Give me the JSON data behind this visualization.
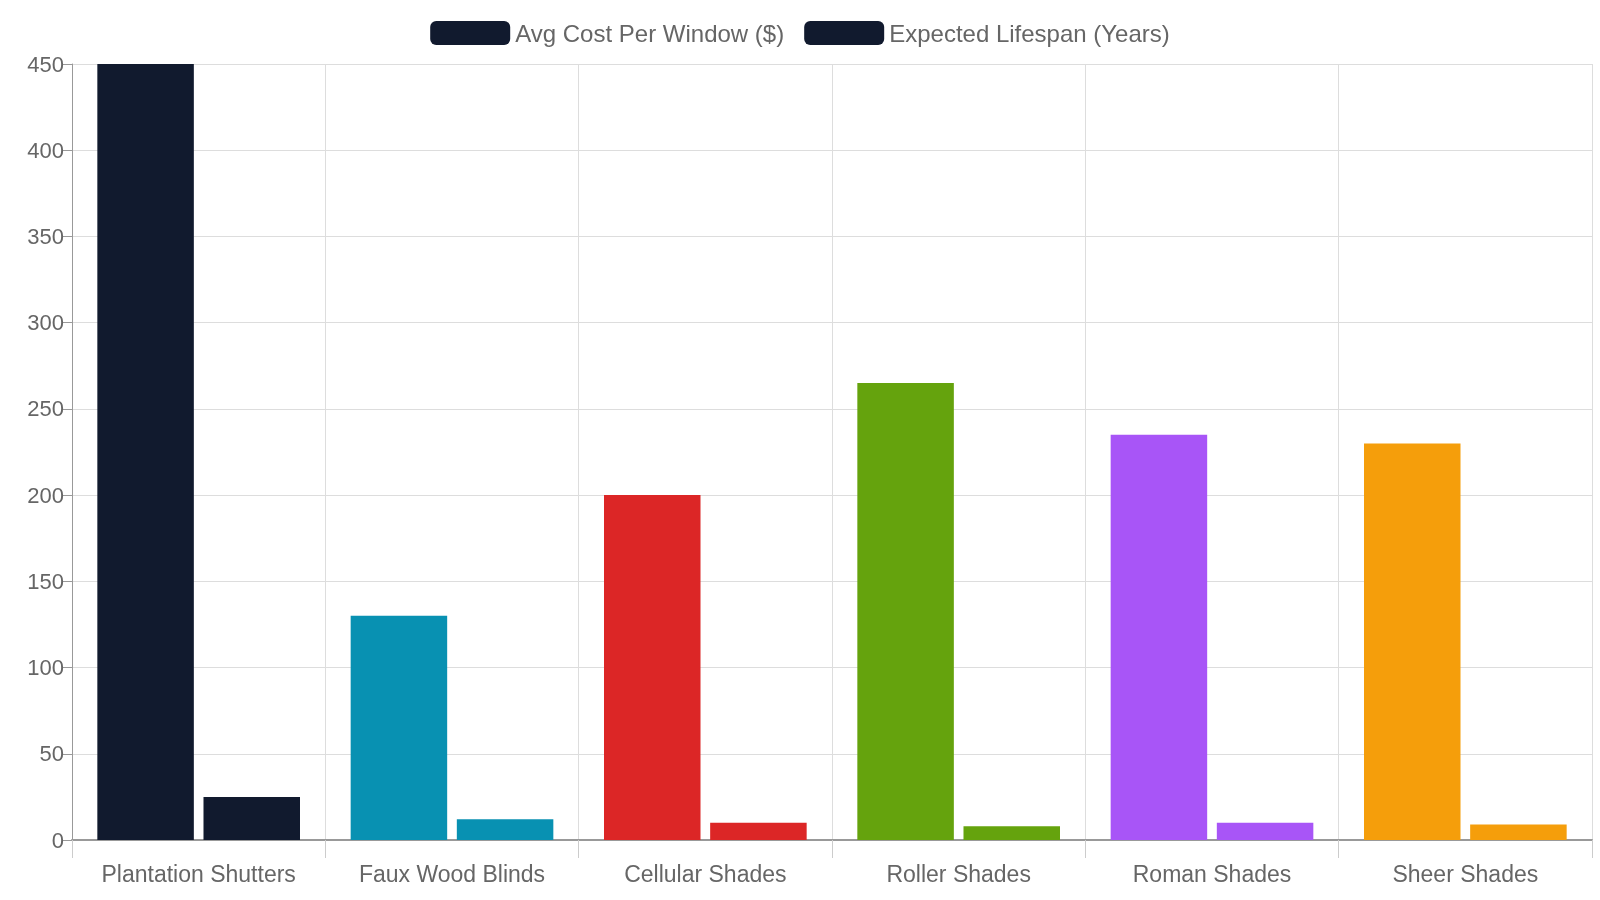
{
  "chart_data": {
    "type": "bar",
    "categories": [
      "Plantation Shutters",
      "Faux Wood Blinds",
      "Cellular Shades",
      "Roller Shades",
      "Roman Shades",
      "Sheer Shades"
    ],
    "series": [
      {
        "name": "Avg Cost Per Window ($)",
        "color": "#111a2e",
        "colors": [
          "#111a2e",
          "#0891b2",
          "#dc2626",
          "#65a30d",
          "#a855f7",
          "#f59e0b"
        ],
        "values": [
          450,
          130,
          200,
          265,
          235,
          230
        ]
      },
      {
        "name": "Expected Lifespan (Years)",
        "color": "#111a2e",
        "colors": [
          "#111a2e",
          "#0891b2",
          "#dc2626",
          "#65a30d",
          "#a855f7",
          "#f59e0b"
        ],
        "values": [
          25,
          12,
          10,
          8,
          10,
          9
        ]
      }
    ],
    "ylim": [
      0,
      450
    ],
    "yticks": [
      0,
      50,
      100,
      150,
      200,
      250,
      300,
      350,
      400,
      450
    ],
    "grid": true,
    "legend": "top"
  }
}
